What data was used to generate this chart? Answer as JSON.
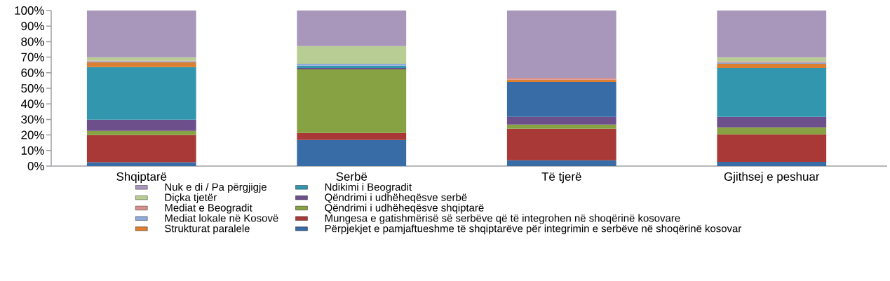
{
  "chart_data": {
    "type": "bar",
    "stacked": true,
    "legend": "bottom",
    "categories": [
      "Shqiptarë",
      "Serbë",
      "Të tjerë",
      "Gjithsej e peshuar"
    ],
    "ylim": [
      0,
      100
    ],
    "yticks": [
      {
        "value": 0,
        "label": "0%"
      },
      {
        "value": 10,
        "label": "10%"
      },
      {
        "value": 20,
        "label": "20%"
      },
      {
        "value": 30,
        "label": "30%"
      },
      {
        "value": 40,
        "label": "40%"
      },
      {
        "value": 50,
        "label": "50%"
      },
      {
        "value": 60,
        "label": "60%"
      },
      {
        "value": 70,
        "label": "70%"
      },
      {
        "value": 80,
        "label": "80%"
      },
      {
        "value": 90,
        "label": "90%"
      },
      {
        "value": 100,
        "label": "100%"
      }
    ],
    "series": [
      {
        "name": "Përpjekjet e pamjaftueshme të shqiptarëve për integrimin e serbëve në shoqërinë kosovar",
        "color": "#376ca6",
        "values": [
          2.5,
          16.8,
          3.7,
          2.7
        ]
      },
      {
        "name": "Mungesa e gatishmërisë së serbëve që të integrohen në shoqërinë kosovare",
        "color": "#a83937",
        "values": [
          17.4,
          4.5,
          20.3,
          17.7
        ]
      },
      {
        "name": "Qëndrimi i udhëheqësve shqiptarë",
        "color": "#86a242",
        "values": [
          2.7,
          40.9,
          2.7,
          4.5
        ]
      },
      {
        "name": "Qëndrimi i udhëheqësve serbë",
        "color": "#6c4f8b",
        "values": [
          7.2,
          0.9,
          4.9,
          6.7
        ]
      },
      {
        "name": "Ndikimi i Beogradit",
        "color": "#3196ae",
        "colors": [
          "#3196ae",
          "#3196ae",
          "#376ca6",
          "#3196ae"
        ],
        "values": [
          33.8,
          1.4,
          22.5,
          31.5
        ]
      },
      {
        "name": "Strukturat paralele",
        "color": "#dc7f30",
        "values": [
          3.1,
          0,
          1.4,
          2.7
        ]
      },
      {
        "name": "Mediat lokale në Kosovë",
        "color": "#8eaad8",
        "values": [
          0.6,
          1.3,
          0,
          0.8
        ]
      },
      {
        "name": "Mediat e Beogradit",
        "color": "#d8918f",
        "values": [
          0.5,
          0,
          1.3,
          0.6
        ]
      },
      {
        "name": "Diçka tjetër",
        "color": "#b8cd94",
        "values": [
          2.1,
          11.3,
          0,
          2.7
        ]
      },
      {
        "name": "Nuk e di / Pa përgjigje",
        "color": "#a896bb",
        "values": [
          30.1,
          22.9,
          43.2,
          30.1
        ]
      }
    ]
  }
}
